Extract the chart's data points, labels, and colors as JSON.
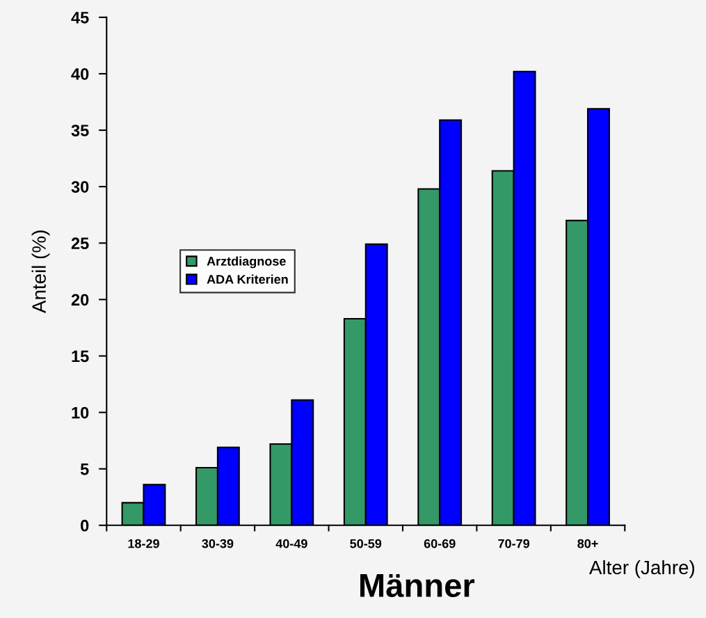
{
  "chart_data": {
    "type": "bar",
    "title": "Männer",
    "xlabel": "Alter (Jahre)",
    "ylabel": "Anteil (%)",
    "categories": [
      "18-29",
      "30-39",
      "40-49",
      "50-59",
      "60-69",
      "70-79",
      "80+"
    ],
    "series": [
      {
        "name": "Arztdiagnose",
        "color": "#339966",
        "values": [
          2.0,
          5.1,
          7.2,
          18.3,
          29.8,
          31.4,
          27.0
        ]
      },
      {
        "name": "ADA Kriterien",
        "color": "#0000ff",
        "values": [
          3.6,
          6.9,
          11.1,
          24.9,
          35.9,
          40.2,
          36.9
        ]
      }
    ],
    "ylim": [
      0,
      45
    ],
    "yticks": [
      0,
      5,
      10,
      15,
      20,
      25,
      30,
      35,
      40,
      45
    ],
    "grid": false,
    "legend": "left"
  }
}
